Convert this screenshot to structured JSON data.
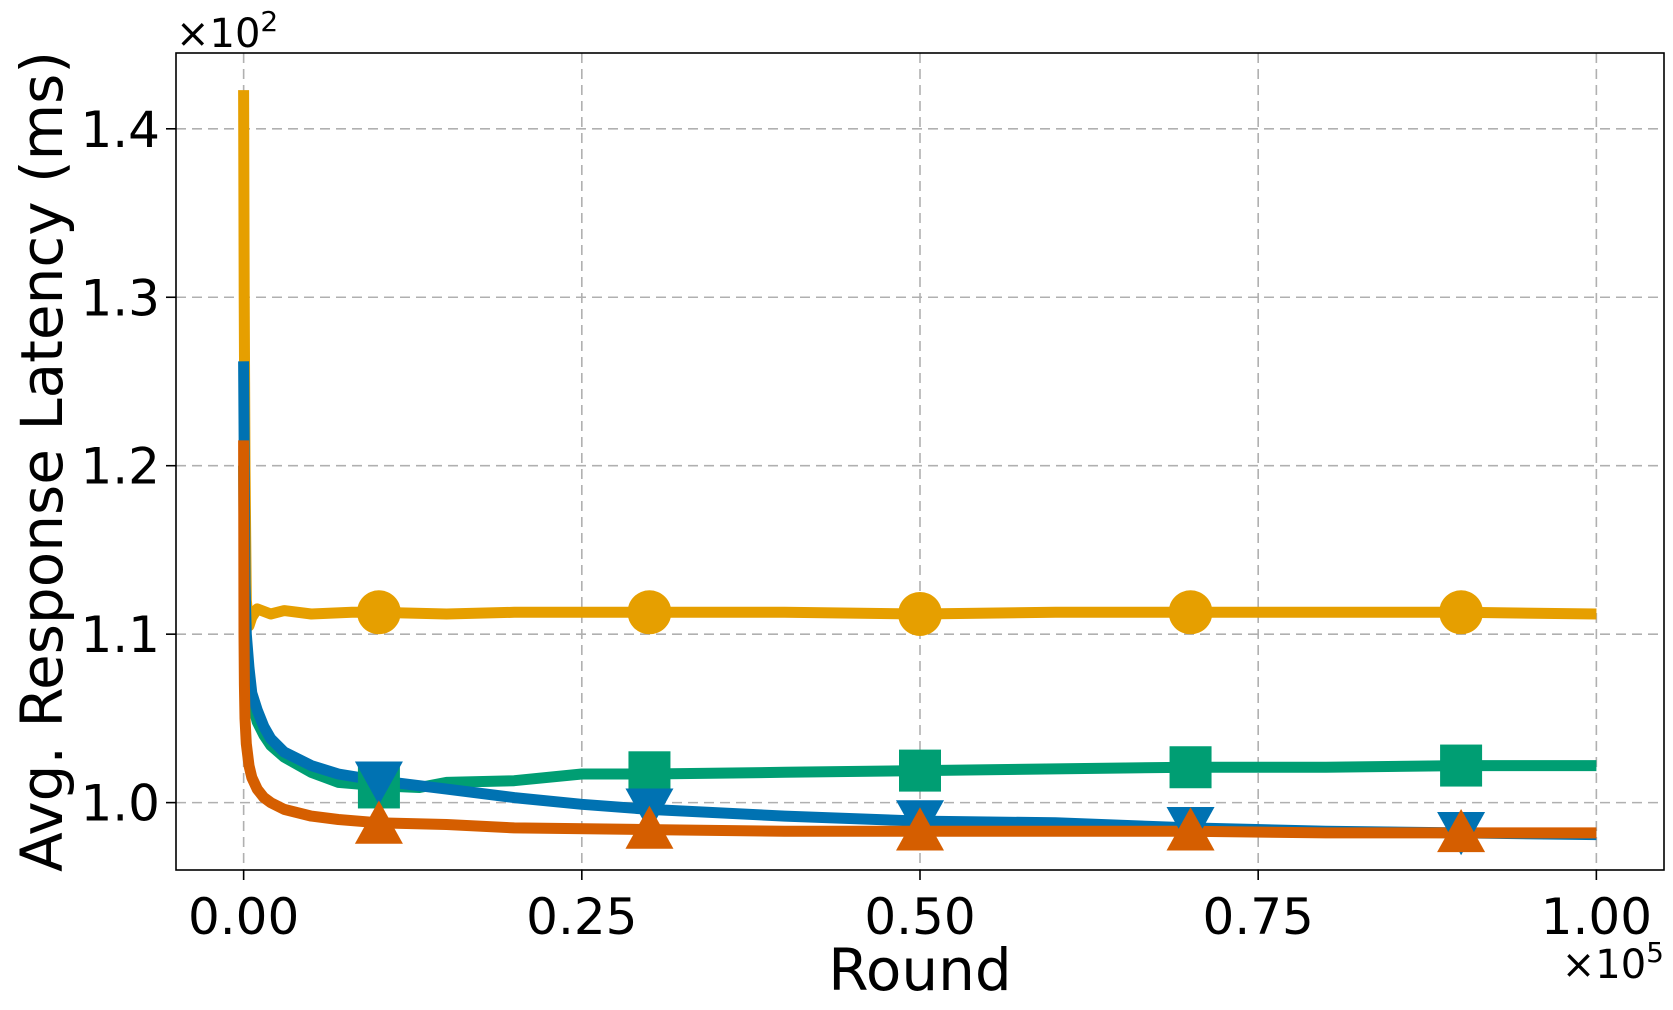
{
  "chart_data": {
    "type": "line",
    "title": "",
    "xlabel": "Round",
    "ylabel": "Avg. Response Latency (ms)",
    "x_multiplier": {
      "base": "×10",
      "exp": "5"
    },
    "y_multiplier": {
      "base": "×10",
      "exp": "2"
    },
    "xlim": [
      -0.05,
      1.05
    ],
    "ylim": [
      0.96,
      1.445
    ],
    "xticks": [
      0.0,
      0.25,
      0.5,
      0.75,
      1.0
    ],
    "xtick_labels": [
      "0.00",
      "0.25",
      "0.50",
      "0.75",
      "1.00"
    ],
    "yticks": [
      1.0,
      1.1,
      1.2,
      1.3,
      1.4
    ],
    "ytick_labels": [
      "1.0",
      "1.1",
      "1.2",
      "1.3",
      "1.4"
    ],
    "grid": true,
    "legend": "none",
    "series": [
      {
        "color": "#E69F00",
        "marker": "circle",
        "x": [
          0.0,
          0.0004,
          0.001,
          0.002,
          0.004,
          0.006,
          0.01,
          0.02,
          0.03,
          0.05,
          0.08,
          0.1,
          0.15,
          0.2,
          0.3,
          0.4,
          0.5,
          0.6,
          0.7,
          0.8,
          0.9,
          1.0
        ],
        "y": [
          1.423,
          1.3,
          1.2,
          1.12,
          1.105,
          1.11,
          1.115,
          1.112,
          1.114,
          1.112,
          1.113,
          1.113,
          1.112,
          1.113,
          1.113,
          1.113,
          1.112,
          1.113,
          1.113,
          1.113,
          1.113,
          1.112
        ],
        "marker_x": [
          0.1,
          0.3,
          0.5,
          0.7,
          0.9
        ],
        "marker_y": [
          1.113,
          1.113,
          1.112,
          1.113,
          1.113
        ]
      },
      {
        "color": "#009E73",
        "marker": "square",
        "x": [
          0.0,
          0.0005,
          0.001,
          0.002,
          0.004,
          0.006,
          0.01,
          0.015,
          0.02,
          0.03,
          0.05,
          0.07,
          0.1,
          0.13,
          0.15,
          0.2,
          0.25,
          0.3,
          0.4,
          0.5,
          0.6,
          0.7,
          0.8,
          0.9,
          1.0
        ],
        "y": [
          1.2,
          1.15,
          1.12,
          1.09,
          1.07,
          1.06,
          1.048,
          1.04,
          1.034,
          1.027,
          1.018,
          1.012,
          1.01,
          1.009,
          1.012,
          1.013,
          1.017,
          1.017,
          1.018,
          1.019,
          1.02,
          1.021,
          1.021,
          1.022,
          1.022
        ],
        "marker_x": [
          0.1,
          0.3,
          0.5,
          0.7,
          0.9
        ],
        "marker_y": [
          1.009,
          1.018,
          1.019,
          1.021,
          1.022
        ]
      },
      {
        "color": "#0072B2",
        "marker": "triangle-down",
        "x": [
          0.0,
          0.0005,
          0.001,
          0.002,
          0.004,
          0.006,
          0.01,
          0.015,
          0.02,
          0.03,
          0.05,
          0.07,
          0.1,
          0.15,
          0.2,
          0.25,
          0.3,
          0.4,
          0.5,
          0.6,
          0.7,
          0.8,
          0.9,
          1.0
        ],
        "y": [
          1.262,
          1.2,
          1.13,
          1.1,
          1.08,
          1.065,
          1.055,
          1.045,
          1.038,
          1.03,
          1.022,
          1.017,
          1.013,
          1.008,
          1.003,
          0.999,
          0.996,
          0.992,
          0.989,
          0.988,
          0.985,
          0.983,
          0.982,
          0.981
        ],
        "marker_x": [
          0.1,
          0.3,
          0.5,
          0.7,
          0.9
        ],
        "marker_y": [
          1.013,
          0.997,
          0.99,
          0.986,
          0.983
        ]
      },
      {
        "color": "#D55E00",
        "marker": "triangle-up",
        "x": [
          0.0,
          0.0003,
          0.0006,
          0.001,
          0.002,
          0.004,
          0.006,
          0.01,
          0.015,
          0.02,
          0.03,
          0.05,
          0.07,
          0.1,
          0.15,
          0.2,
          0.3,
          0.4,
          0.5,
          0.6,
          0.7,
          0.8,
          0.9,
          1.0
        ],
        "y": [
          1.215,
          1.1,
          1.07,
          1.05,
          1.035,
          1.022,
          1.015,
          1.008,
          1.003,
          1.0,
          0.996,
          0.992,
          0.99,
          0.988,
          0.987,
          0.985,
          0.984,
          0.983,
          0.983,
          0.983,
          0.983,
          0.982,
          0.982,
          0.982
        ],
        "marker_x": [
          0.1,
          0.3,
          0.5,
          0.7,
          0.9
        ],
        "marker_y": [
          0.987,
          0.984,
          0.983,
          0.983,
          0.982
        ]
      }
    ]
  }
}
